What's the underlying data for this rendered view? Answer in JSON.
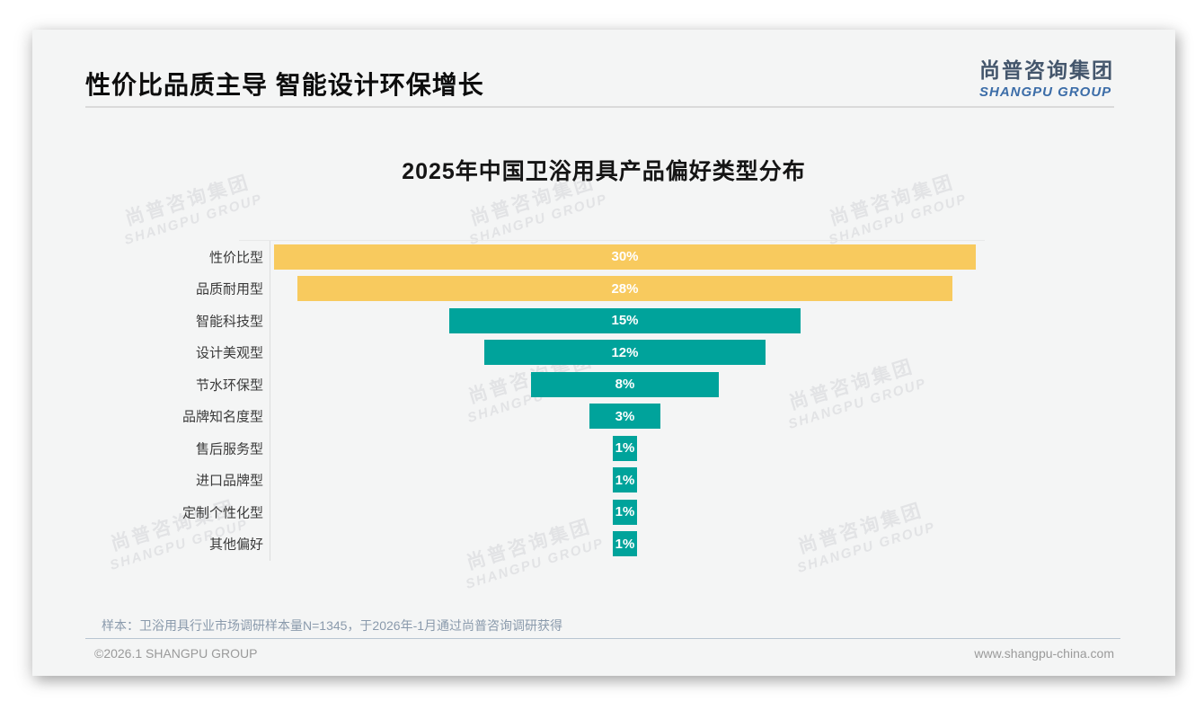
{
  "page": {
    "title": "性价比品质主导 智能设计环保增长",
    "logo": {
      "cn": "尚普咨询集团",
      "en": "SHANGPU GROUP"
    },
    "watermark": {
      "cn": "尚普咨询集团",
      "en": "SHANGPU GROUP"
    },
    "footnote": "样本：卫浴用具行业市场调研样本量N=1345，于2026年-1月通过尚普咨询调研获得",
    "footer": {
      "copyright": "©2026.1 SHANGPU GROUP",
      "website": "www.shangpu-china.com"
    }
  },
  "colors": {
    "bar_highlight": "#F8CA5E",
    "bar_default": "#00A39B",
    "logo_blue": "#3C6DA8",
    "logo_dark": "#44566C",
    "footer_divider": "#B8C5D1",
    "card_background": "#F4F5F5"
  },
  "chart_data": {
    "type": "bar",
    "orientation": "horizontal-centered-funnel",
    "title": "2025年中国卫浴用具产品偏好类型分布",
    "xlabel": "",
    "ylabel": "",
    "categories": [
      "性价比型",
      "品质耐用型",
      "智能科技型",
      "设计美观型",
      "节水环保型",
      "品牌知名度型",
      "售后服务型",
      "进口品牌型",
      "定制个性化型",
      "其他偏好"
    ],
    "values": [
      30,
      28,
      15,
      12,
      8,
      3,
      1,
      1,
      1,
      1
    ],
    "value_labels": [
      "30%",
      "28%",
      "15%",
      "12%",
      "8%",
      "3%",
      "1%",
      "1%",
      "1%",
      "1%"
    ],
    "bar_colors": [
      "#F8CA5E",
      "#F8CA5E",
      "#00A39B",
      "#00A39B",
      "#00A39B",
      "#00A39B",
      "#00A39B",
      "#00A39B",
      "#00A39B",
      "#00A39B"
    ],
    "xlim": [
      0,
      30
    ],
    "value_suffix": "%",
    "grid": false,
    "legend": "none"
  }
}
